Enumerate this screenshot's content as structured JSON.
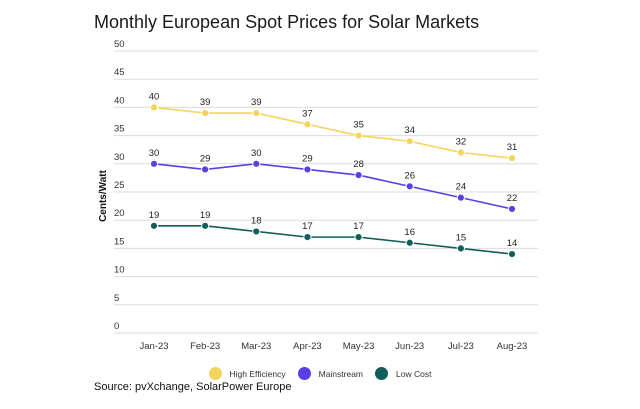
{
  "chart_data": {
    "type": "line",
    "title": "Monthly European Spot Prices for Solar Markets",
    "xlabel": "",
    "ylabel": "Cents/Watt",
    "ylim": [
      0,
      50
    ],
    "yticks": [
      0,
      5,
      10,
      15,
      20,
      25,
      30,
      35,
      40,
      45,
      50
    ],
    "grid": true,
    "legend_position": "bottom",
    "categories": [
      "Jan-23",
      "Feb-23",
      "Mar-23",
      "Apr-23",
      "May-23",
      "Jun-23",
      "Jul-23",
      "Aug-23"
    ],
    "series": [
      {
        "name": "High Efficiency",
        "color": "#f5d45c",
        "values": [
          40,
          39,
          39,
          37,
          35,
          34,
          32,
          31
        ]
      },
      {
        "name": "Mainstream",
        "color": "#5a3ee6",
        "values": [
          30,
          29,
          30,
          29,
          28,
          26,
          24,
          22
        ]
      },
      {
        "name": "Low Cost",
        "color": "#0f5e5a",
        "values": [
          19,
          19,
          18,
          17,
          17,
          16,
          15,
          14
        ]
      }
    ],
    "source": "Source: pvXchange, SolarPower Europe"
  }
}
